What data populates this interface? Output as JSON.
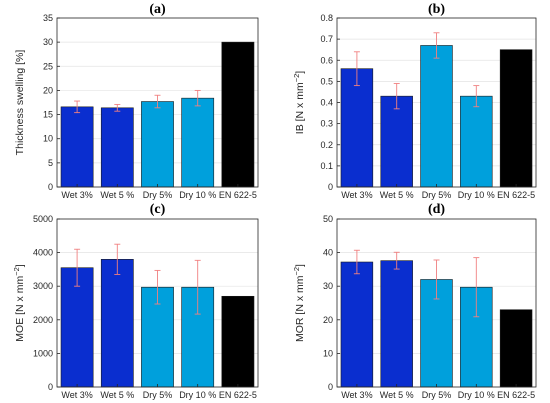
{
  "colors": {
    "wet": "#0a2ecf",
    "dry": "#00a0dc",
    "standard": "#000000",
    "error": "#f08080"
  },
  "chart_data": [
    {
      "type": "bar",
      "panel_label": "(a)",
      "ylabel": "Thickness swelling [%]",
      "ylabel_sup": "",
      "ylabel_end": "",
      "categories": [
        "Wet 3%",
        "Wet 5 %",
        "Dry 5%",
        "Dry 10 %",
        "EN 622-5"
      ],
      "values": [
        16.6,
        16.4,
        17.7,
        18.4,
        30.0
      ],
      "errors": [
        1.2,
        0.7,
        1.3,
        1.6,
        null
      ],
      "ylim": [
        0,
        35
      ],
      "yticks": [
        0,
        5,
        10,
        15,
        20,
        25,
        30,
        35
      ],
      "grid": true
    },
    {
      "type": "bar",
      "panel_label": "(b)",
      "ylabel": "IB [N x mm",
      "ylabel_sup": "−2",
      "ylabel_end": "]",
      "categories": [
        "Wet 3%",
        "Wet 5 %",
        "Dry 5%",
        "Dry 10 %",
        "EN 622-5"
      ],
      "values": [
        0.56,
        0.43,
        0.67,
        0.43,
        0.65
      ],
      "errors": [
        0.08,
        0.06,
        0.06,
        0.05,
        null
      ],
      "ylim": [
        0,
        0.8
      ],
      "yticks": [
        0,
        0.1,
        0.2,
        0.3,
        0.4,
        0.5,
        0.6,
        0.7,
        0.8
      ],
      "grid": true
    },
    {
      "type": "bar",
      "panel_label": "(c)",
      "ylabel": "MOE [N x mm",
      "ylabel_sup": "−2",
      "ylabel_end": "]",
      "categories": [
        "Wet 3%",
        "Wet 5 %",
        "Dry 5%",
        "Dry 10 %",
        "EN 622-5"
      ],
      "values": [
        3550,
        3800,
        2970,
        2970,
        2700
      ],
      "errors": [
        550,
        450,
        500,
        800,
        null
      ],
      "ylim": [
        0,
        5000
      ],
      "yticks": [
        0,
        1000,
        2000,
        3000,
        4000,
        5000
      ],
      "grid": true
    },
    {
      "type": "bar",
      "panel_label": "(d)",
      "ylabel": "MOR [N x mm",
      "ylabel_sup": "−2",
      "ylabel_end": "]",
      "categories": [
        "Wet 3%",
        "Wet 5 %",
        "Dry 5%",
        "Dry 10 %",
        "EN 622-5"
      ],
      "values": [
        37.2,
        37.6,
        32.0,
        29.7,
        23.0
      ],
      "errors": [
        3.5,
        2.5,
        5.8,
        8.8,
        null
      ],
      "ylim": [
        0,
        50
      ],
      "yticks": [
        0,
        10,
        20,
        30,
        40,
        50
      ],
      "grid": true
    }
  ]
}
